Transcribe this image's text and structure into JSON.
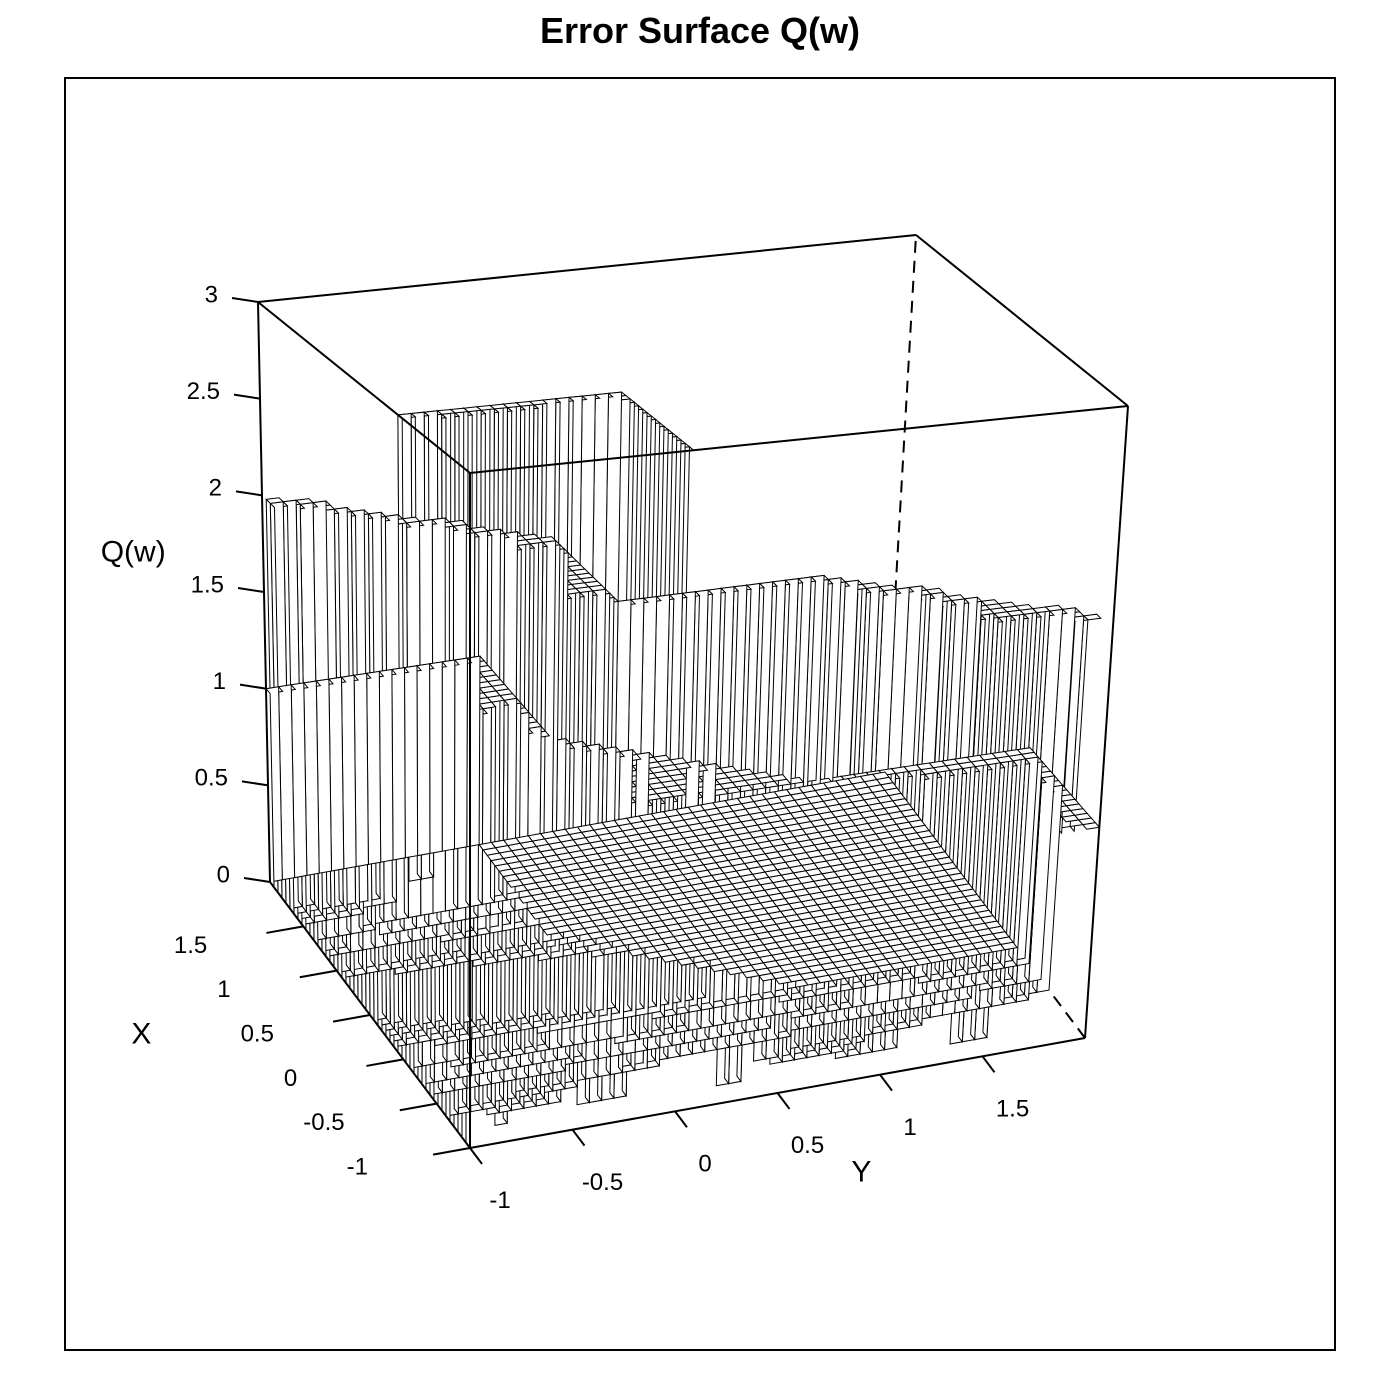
{
  "title": "Error Surface Q(w)",
  "chart_data": {
    "type": "surface",
    "title": "Error Surface Q(w)",
    "xlabel": "X",
    "ylabel": "Y",
    "zlabel": "Q(w)",
    "xlim": [
      -1,
      2
    ],
    "ylim": [
      -1,
      2
    ],
    "zlim": [
      0,
      3
    ],
    "x_ticks": [
      "-1",
      "-0.5",
      "0",
      "0.5",
      "1",
      "1.5"
    ],
    "y_ticks": [
      "-1",
      "-0.5",
      "0",
      "0.5",
      "1",
      "1.5"
    ],
    "z_ticks": [
      "0",
      "0.5",
      "1",
      "1.5",
      "2",
      "2.5",
      "3"
    ],
    "x_tick_values": [
      -1,
      -0.5,
      0,
      0.5,
      1,
      1.5
    ],
    "y_tick_values": [
      -1,
      -0.5,
      0,
      0.5,
      1,
      1.5
    ],
    "z_tick_values": [
      0,
      0.5,
      1,
      1.5,
      2,
      2.5,
      3
    ],
    "grid_resolution": 51,
    "surface_function": "Q(x, y) = number of unit thresholds exceeded: [x < 0] + [y < 0] + [x + y < 1]",
    "step_levels": [
      0,
      1,
      2,
      3
    ],
    "render_style": "wireframe with hidden-surface removal, black lines on white",
    "box": true
  },
  "colors": {
    "line": "#000000",
    "fill": "#ffffff",
    "background": "#ffffff"
  }
}
